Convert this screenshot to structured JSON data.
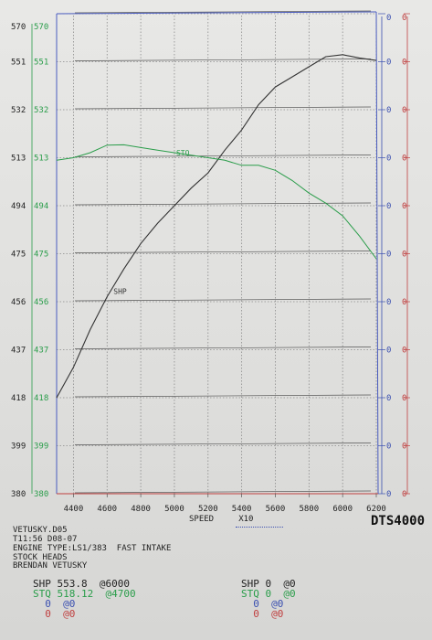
{
  "chart_data": {
    "type": "line",
    "x": [
      4300,
      4400,
      4500,
      4600,
      4700,
      4800,
      4900,
      5000,
      5100,
      5200,
      5300,
      5400,
      5500,
      5600,
      5700,
      5800,
      5900,
      6000,
      6100,
      6200
    ],
    "xlim": [
      4300,
      6200
    ],
    "ylim": [
      380,
      570
    ],
    "left_ticks": [
      "570",
      "551",
      "532",
      "513",
      "494",
      "475",
      "456",
      "437",
      "418",
      "399",
      "380"
    ],
    "green_ticks": [
      "570",
      "551",
      "532",
      "513",
      "494",
      "475",
      "456",
      "437",
      "418",
      "399",
      "380"
    ],
    "blue_ticks": [
      "0",
      "0",
      "0",
      "0",
      "0",
      "0",
      "0",
      "0",
      "0",
      "0",
      "0"
    ],
    "red_ticks": [
      "0",
      "0",
      "0",
      "0",
      "0",
      "0",
      "0",
      "0",
      "0",
      "0",
      "0"
    ],
    "x_ticks": [
      "4400",
      "4600",
      "4800",
      "5000",
      "5200",
      "5400",
      "5600",
      "5800",
      "6000",
      "6200"
    ],
    "xlabel": "SPEED",
    "xunit": "X10",
    "series": [
      {
        "name": "SHP",
        "color": "#333333",
        "values": [
          418,
          430,
          445,
          458,
          469,
          479,
          487,
          494,
          501,
          507,
          516,
          524,
          534,
          541,
          545,
          549,
          553,
          553.8,
          552.5,
          551.5
        ]
      },
      {
        "name": "STQ",
        "color": "#2a9d4a",
        "values": [
          512,
          513,
          515,
          518,
          518.12,
          517,
          516,
          515,
          514,
          513,
          512,
          510,
          510,
          508,
          504,
          499,
          495,
          490,
          482,
          473
        ]
      }
    ]
  },
  "brand": "DTS4000",
  "info": {
    "file": "VETUSKY.D05",
    "datetime": "T11:56 D08-07",
    "engine": "ENGINE TYPE:LS1/383  FAST INTAKE",
    "heads": "STOCK HEADS",
    "owner": "BRENDAN VETUSKY"
  },
  "summary_left": [
    {
      "label": "SHP",
      "value": "553.8",
      "at": "@6000"
    },
    {
      "label": "STQ",
      "value": "518.12",
      "at": "@4700"
    },
    {
      "label": "0",
      "value": "",
      "at": "@0"
    },
    {
      "label": "0",
      "value": "",
      "at": "@0"
    }
  ],
  "summary_right": [
    {
      "label": "SHP",
      "value": "0",
      "at": "@0"
    },
    {
      "label": "STQ",
      "value": "0",
      "at": "@0"
    },
    {
      "label": "0",
      "value": "",
      "at": "@0"
    },
    {
      "label": "0",
      "value": "",
      "at": "@0"
    }
  ]
}
